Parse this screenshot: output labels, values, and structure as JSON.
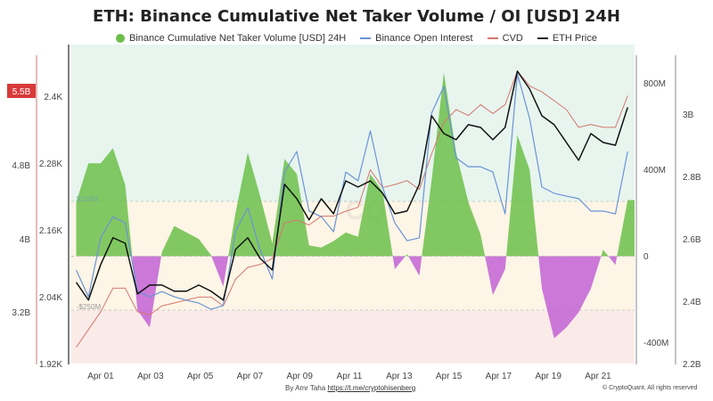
{
  "chart_data": {
    "type": "area+line",
    "title": "ETH: Binance Cumulative Net Taker Volume / OI [USD] 24H",
    "legend": [
      {
        "name": "Binance Cumulative Net Taker Volume [USD] 24H",
        "color": "#6cbf4a"
      },
      {
        "name": "Binance Open Interest",
        "color": "#6b93d6"
      },
      {
        "name": "CVD",
        "color": "#d4776f"
      },
      {
        "name": "ETH Price",
        "color": "#111111"
      }
    ],
    "legend_position": "top",
    "x_ticks": [
      "Apr 01",
      "Apr 03",
      "Apr 05",
      "Apr 07",
      "Apr 09",
      "Apr 11",
      "Apr 13",
      "Apr 15",
      "Apr 17",
      "Apr 19",
      "Apr 21"
    ],
    "x": [
      "Mar 31 00:00",
      "Mar 31 12:00",
      "Apr 01 00:00",
      "Apr 01 12:00",
      "Apr 02 00:00",
      "Apr 02 12:00",
      "Apr 03 00:00",
      "Apr 03 12:00",
      "Apr 04 00:00",
      "Apr 04 12:00",
      "Apr 05 00:00",
      "Apr 05 12:00",
      "Apr 06 00:00",
      "Apr 06 12:00",
      "Apr 07 00:00",
      "Apr 07 12:00",
      "Apr 08 00:00",
      "Apr 08 12:00",
      "Apr 09 00:00",
      "Apr 09 12:00",
      "Apr 10 00:00",
      "Apr 10 12:00",
      "Apr 11 00:00",
      "Apr 11 12:00",
      "Apr 12 00:00",
      "Apr 12 12:00",
      "Apr 13 00:00",
      "Apr 13 12:00",
      "Apr 14 00:00",
      "Apr 14 12:00",
      "Apr 15 00:00",
      "Apr 15 12:00",
      "Apr 16 00:00",
      "Apr 16 12:00",
      "Apr 17 00:00",
      "Apr 17 12:00",
      "Apr 18 00:00",
      "Apr 18 12:00",
      "Apr 19 00:00",
      "Apr 19 12:00",
      "Apr 20 00:00",
      "Apr 20 12:00",
      "Apr 21 00:00",
      "Apr 21 12:00",
      "Apr 22 00:00",
      "Apr 22 12:00"
    ],
    "net_taker_volume": {
      "axis": "right-inner",
      "ticks": [
        "800M",
        "400M",
        "0",
        "-400M"
      ],
      "range": [
        -500000000,
        1000000000
      ],
      "thresholds": [
        {
          "label": "$250M",
          "value": 250000000
        },
        {
          "label": "-$250M",
          "value": -250000000
        }
      ],
      "positive_color": "#6cbf4a",
      "negative_color": "#c56ad6",
      "values_millions": [
        250,
        430,
        430,
        500,
        330,
        -250,
        -330,
        20,
        140,
        110,
        80,
        5,
        -140,
        200,
        480,
        280,
        60,
        450,
        380,
        50,
        40,
        70,
        110,
        90,
        380,
        300,
        -60,
        10,
        -90,
        350,
        850,
        480,
        250,
        100,
        -180,
        -60,
        560,
        400,
        -150,
        -380,
        -330,
        -260,
        -150,
        30,
        -40,
        260
      ]
    },
    "eth_price": {
      "axis": "left-inner",
      "ticks": [
        "2.4K",
        "2.28K",
        "2.16K",
        "2.04K",
        "1.92K"
      ],
      "range": [
        1920,
        2480
      ],
      "values": [
        2066,
        2034,
        2098,
        2146,
        2136,
        2045,
        2061,
        2061,
        2050,
        2050,
        2061,
        2050,
        2034,
        2125,
        2146,
        2109,
        2088,
        2242,
        2216,
        2178,
        2216,
        2189,
        2248,
        2237,
        2248,
        2226,
        2189,
        2194,
        2242,
        2365,
        2333,
        2322,
        2349,
        2344,
        2322,
        2344,
        2445,
        2413,
        2365,
        2349,
        2317,
        2285,
        2333,
        2317,
        2312,
        2380
      ]
    },
    "open_interest": {
      "axis": "right-outer",
      "ticks": [
        "3B",
        "2.8B",
        "2.6B",
        "2.4B",
        "2.2B"
      ],
      "range": [
        2.2,
        3.2
      ],
      "values_billions": [
        2.5,
        2.414,
        2.603,
        2.671,
        2.651,
        2.431,
        2.414,
        2.431,
        2.414,
        2.403,
        2.394,
        2.374,
        2.386,
        2.623,
        2.7,
        2.566,
        2.471,
        2.814,
        2.88,
        2.689,
        2.671,
        2.623,
        2.814,
        2.786,
        2.946,
        2.766,
        2.651,
        2.594,
        2.603,
        3.003,
        3.089,
        2.86,
        2.831,
        2.831,
        2.814,
        2.68,
        3.129,
        2.986,
        2.766,
        2.746,
        2.737,
        2.729,
        2.689,
        2.689,
        2.68,
        2.88
      ]
    },
    "cvd": {
      "axis": "left-outer",
      "ticks": [
        "5.5B",
        "4.8B",
        "4B",
        "3.2B"
      ],
      "current_label": "5.5B",
      "range": [
        2.6,
        6.0
      ],
      "values_billions": [
        2.9,
        3.08,
        3.26,
        3.5,
        3.5,
        3.26,
        3.23,
        3.32,
        3.35,
        3.38,
        3.41,
        3.41,
        3.32,
        3.59,
        3.71,
        3.74,
        3.8,
        4.16,
        4.19,
        4.14,
        4.23,
        4.23,
        4.28,
        4.32,
        4.7,
        4.52,
        4.55,
        4.59,
        4.5,
        4.86,
        5.18,
        5.31,
        5.25,
        5.36,
        5.27,
        5.36,
        5.7,
        5.55,
        5.49,
        5.4,
        5.31,
        5.13,
        5.16,
        5.13,
        5.13,
        5.45
      ]
    },
    "grid": false
  },
  "watermark": "CryptoQuant",
  "footer": {
    "author": "By Amr Taha",
    "link": "https://t.me/cryptohisenberg",
    "copyright": "© CryptoQuant. All rights reserved"
  }
}
